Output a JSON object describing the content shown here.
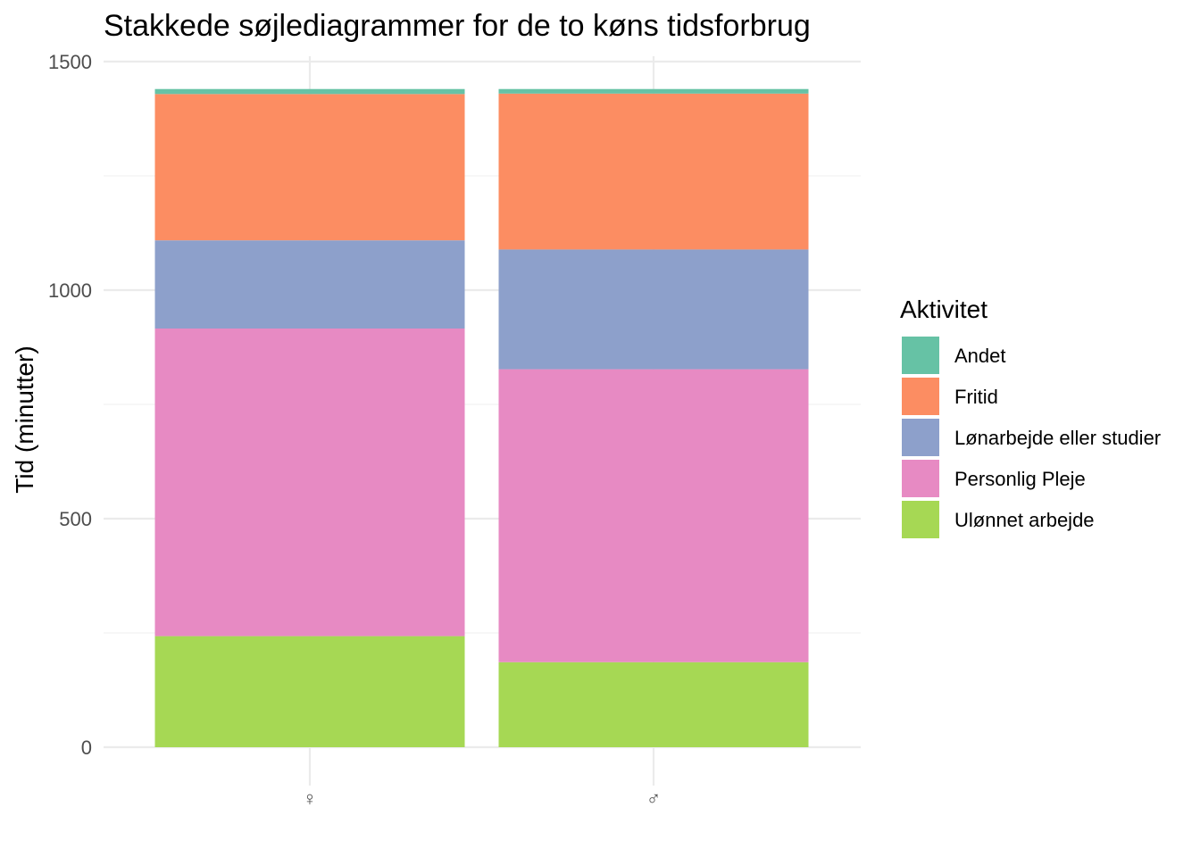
{
  "chart_data": {
    "type": "bar",
    "stacked": true,
    "title": "Stakkede søjlediagrammer for de to køns tidsforbrug",
    "ylabel": "Tid (minutter)",
    "xlabel": "",
    "ylim": [
      0,
      1500
    ],
    "yticks": [
      0,
      500,
      1000,
      1500
    ],
    "grid": true,
    "legend_position": "right",
    "legend_title": "Aktivitet",
    "categories": [
      "♀",
      "♂"
    ],
    "category_colors": [
      "#c832e6",
      "#4d4d4d"
    ],
    "series": [
      {
        "name": "Ulønnet arbejde",
        "color": "#a6d854",
        "values": [
          243,
          186
        ]
      },
      {
        "name": "Personlig Pleje",
        "color": "#e78ac3",
        "values": [
          673,
          641
        ]
      },
      {
        "name": "Lønarbejde eller studier",
        "color": "#8da0cb",
        "values": [
          193,
          262
        ]
      },
      {
        "name": "Fritid",
        "color": "#fc8d62",
        "values": [
          320,
          341
        ]
      },
      {
        "name": "Andet",
        "color": "#66c2a5",
        "values": [
          11,
          10
        ]
      }
    ],
    "legend_order": [
      "Andet",
      "Fritid",
      "Lønarbejde eller studier",
      "Personlig Pleje",
      "Ulønnet arbejde"
    ]
  }
}
